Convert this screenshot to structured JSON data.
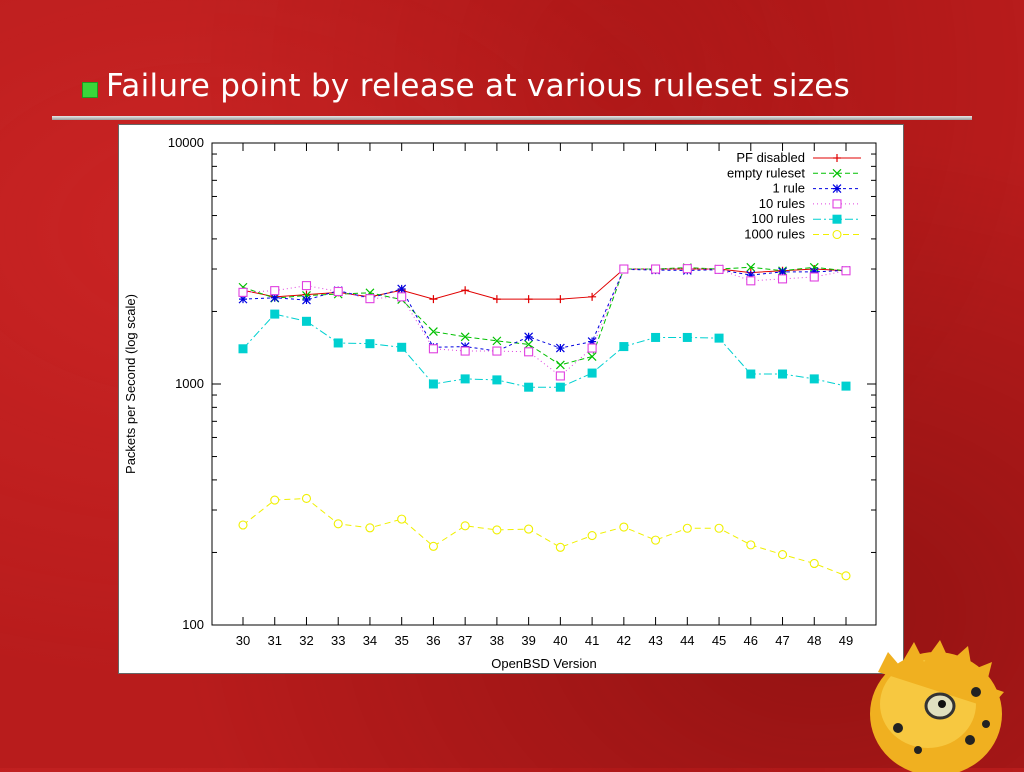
{
  "slide": {
    "title": "Failure point by release at various ruleset sizes",
    "accent_color": "#3ad63a",
    "background_color": "#b81c1c"
  },
  "chart_data": {
    "type": "line",
    "title": "",
    "xlabel": "OpenBSD Version",
    "ylabel": "Packets per Second (log scale)",
    "y_scale": "log",
    "ylim": [
      100,
      10000
    ],
    "y_ticks": [
      "100",
      "1000",
      "10000"
    ],
    "categories": [
      "30",
      "31",
      "32",
      "33",
      "34",
      "35",
      "36",
      "37",
      "38",
      "39",
      "40",
      "41",
      "42",
      "43",
      "44",
      "45",
      "46",
      "47",
      "48",
      "49"
    ],
    "legend_position": "top-right",
    "grid": false,
    "series": [
      {
        "name": "PF disabled",
        "color": "#e00000",
        "marker": "plus",
        "dash": "",
        "values": [
          2450,
          2300,
          2350,
          2400,
          2300,
          2450,
          2250,
          2450,
          2250,
          2250,
          2250,
          2300,
          3000,
          3000,
          3000,
          3000,
          2900,
          2950,
          3000,
          2950
        ]
      },
      {
        "name": "empty ruleset",
        "color": "#00c000",
        "marker": "x",
        "dash": "5,3",
        "values": [
          2520,
          2270,
          2330,
          2360,
          2390,
          2240,
          1650,
          1570,
          1510,
          1460,
          1200,
          1300,
          3000,
          3000,
          3040,
          3000,
          3050,
          2950,
          3050,
          2950
        ]
      },
      {
        "name": "1 rule",
        "color": "#0000e0",
        "marker": "star",
        "dash": "3,3",
        "values": [
          2250,
          2280,
          2230,
          2440,
          2270,
          2480,
          1420,
          1430,
          1370,
          1570,
          1410,
          1500,
          2990,
          2970,
          2960,
          2980,
          2830,
          2920,
          2920,
          2960
        ]
      },
      {
        "name": "10 rules",
        "color": "#e040e0",
        "marker": "square-open",
        "dash": "1,3",
        "values": [
          2400,
          2440,
          2560,
          2420,
          2260,
          2300,
          1400,
          1370,
          1370,
          1360,
          1080,
          1410,
          3000,
          3000,
          3010,
          2990,
          2680,
          2730,
          2780,
          2950
        ]
      },
      {
        "name": "100 rules",
        "color": "#00d0d0",
        "marker": "square-filled",
        "dash": "8,3,2,3",
        "values": [
          1400,
          1950,
          1820,
          1480,
          1470,
          1420,
          1000,
          1050,
          1040,
          970,
          970,
          1110,
          1430,
          1560,
          1560,
          1550,
          1100,
          1100,
          1050,
          980
        ]
      },
      {
        "name": "1000 rules",
        "color": "#f0f000",
        "marker": "circle-open",
        "dash": "6,4",
        "values": [
          260,
          330,
          335,
          263,
          253,
          275,
          212,
          258,
          248,
          250,
          210,
          235,
          255,
          225,
          252,
          252,
          215,
          196,
          180,
          160
        ]
      }
    ]
  }
}
